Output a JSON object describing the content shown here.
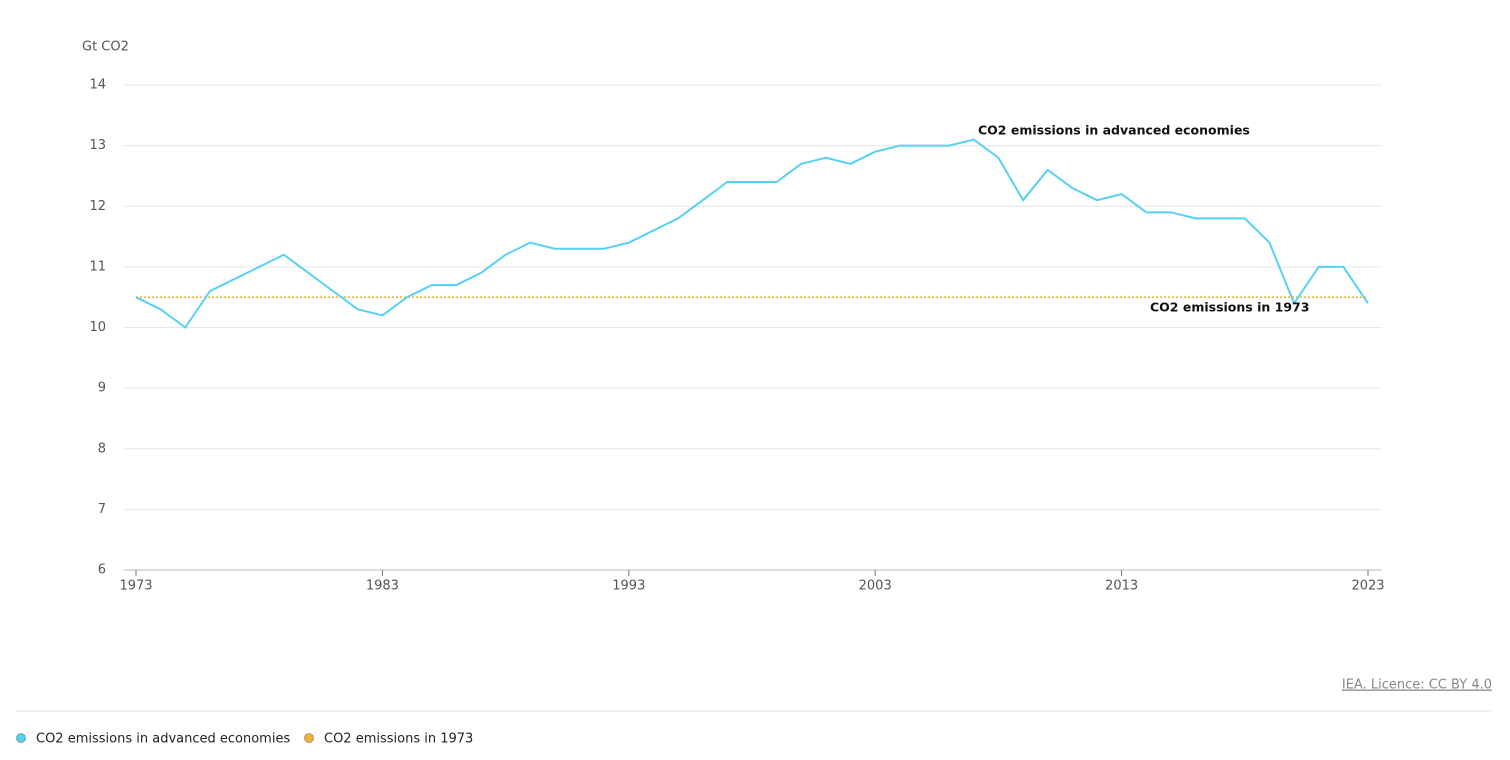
{
  "chart_data": {
    "type": "line",
    "y_axis_label": "Gt CO2",
    "source": "IEA. Licence: CC BY 4.0",
    "x": [
      1973,
      1974,
      1975,
      1976,
      1977,
      1978,
      1979,
      1980,
      1981,
      1982,
      1983,
      1984,
      1985,
      1986,
      1987,
      1988,
      1989,
      1990,
      1991,
      1992,
      1993,
      1994,
      1995,
      1996,
      1997,
      1998,
      1999,
      2000,
      2001,
      2002,
      2003,
      2004,
      2005,
      2006,
      2007,
      2008,
      2009,
      2010,
      2011,
      2012,
      2013,
      2014,
      2015,
      2016,
      2017,
      2018,
      2019,
      2020,
      2021,
      2022,
      2023
    ],
    "series": [
      {
        "name": "CO2 emissions in advanced economies",
        "color": "#56d0f3",
        "values": [
          10.5,
          10.3,
          10.0,
          10.6,
          10.8,
          11.0,
          11.2,
          10.9,
          10.6,
          10.3,
          10.2,
          10.5,
          10.7,
          10.7,
          10.9,
          11.2,
          11.4,
          11.3,
          11.3,
          11.3,
          11.4,
          11.6,
          11.8,
          12.1,
          12.4,
          12.4,
          12.4,
          12.7,
          12.8,
          12.7,
          12.9,
          13.0,
          13.0,
          13.0,
          13.1,
          12.8,
          12.1,
          12.6,
          12.3,
          12.1,
          12.2,
          11.9,
          11.9,
          11.8,
          11.8,
          11.8,
          11.4,
          10.4,
          11.0,
          11.0,
          10.4
        ]
      }
    ],
    "reference_line": {
      "name": "CO2 emissions in 1973",
      "color": "#f2b233",
      "value": 10.5
    },
    "xlim": [
      1973,
      2023
    ],
    "xticks": [
      1973,
      1983,
      1993,
      2003,
      2013,
      2023
    ],
    "ylim": [
      6,
      14
    ],
    "yticks": [
      6,
      7,
      8,
      9,
      10,
      11,
      12,
      13,
      14
    ],
    "grid": true
  }
}
